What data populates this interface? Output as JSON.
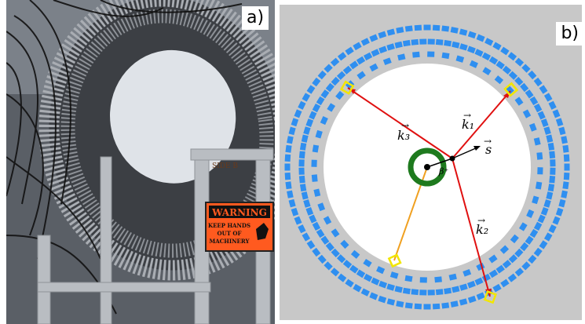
{
  "panel_a": {
    "label": "a)",
    "warning_sign": {
      "heading": "WARNING",
      "line1": "KEEP HANDS",
      "line2": "OUT OF",
      "line3": "MACHINERY"
    },
    "side_tag": "SIDE B"
  },
  "panel_b": {
    "label": "b)",
    "vector_labels": {
      "k1": "k₁",
      "k2": "k₂",
      "k3": "k₃",
      "s": "s",
      "beta": "β⁺"
    },
    "colors": {
      "background": "#c8c8c8",
      "scintillator": "#2f8ff0",
      "annihilation_line": "#e01010",
      "scatter_line": "#f0a020",
      "source_ring": "#1e7a1e",
      "highlight_box": "#f2e600"
    }
  }
}
